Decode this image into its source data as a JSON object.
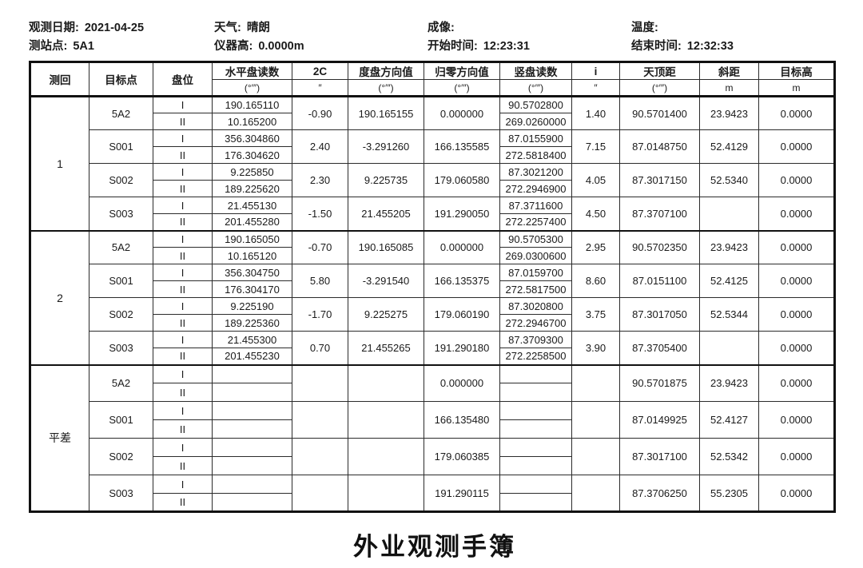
{
  "meta": {
    "cols": [
      {
        "rows": [
          {
            "label": "观测日期:",
            "value": "2021-04-25"
          },
          {
            "label": "测站点:",
            "value": "5A1"
          }
        ]
      },
      {
        "rows": [
          {
            "label": "天气:",
            "value": "晴朗"
          },
          {
            "label": "仪器高:",
            "value": "0.0000m"
          }
        ]
      },
      {
        "rows": [
          {
            "label": "成像:",
            "value": ""
          },
          {
            "label": "开始时间:",
            "value": "12:23:31"
          }
        ]
      },
      {
        "rows": [
          {
            "label": "温度:",
            "value": ""
          },
          {
            "label": "结束时间:",
            "value": "12:32:33"
          }
        ]
      }
    ]
  },
  "table": {
    "columns": [
      {
        "label": "测回",
        "unit": null
      },
      {
        "label": "目标点",
        "unit": null
      },
      {
        "label": "盘位",
        "unit": null
      },
      {
        "label": "水平盘读数",
        "unit": "(°′″)"
      },
      {
        "label": "2C",
        "unit": "″"
      },
      {
        "label": "度盘方向值",
        "unit": "(°′″)"
      },
      {
        "label": "归零方向值",
        "unit": "(°′″)"
      },
      {
        "label": "竖盘读数",
        "unit": "(°′″)"
      },
      {
        "label": "i",
        "unit": "″"
      },
      {
        "label": "天顶距",
        "unit": "(°′″)"
      },
      {
        "label": "斜距",
        "unit": "m"
      },
      {
        "label": "目标高",
        "unit": "m"
      }
    ],
    "sections": [
      {
        "round": "1",
        "targets": [
          {
            "name": "5A2",
            "faces": [
              "I",
              "II"
            ],
            "horizontal": [
              "190.165110",
              "10.165200"
            ],
            "c2": "-0.90",
            "direction": "190.165155",
            "zeroed": "0.000000",
            "vertical": [
              "90.5702800",
              "269.0260000"
            ],
            "i": "1.40",
            "zenith": "90.5701400",
            "slope": "23.9423",
            "target_height": "0.0000"
          },
          {
            "name": "S001",
            "faces": [
              "I",
              "II"
            ],
            "horizontal": [
              "356.304860",
              "176.304620"
            ],
            "c2": "2.40",
            "direction": "-3.291260",
            "zeroed": "166.135585",
            "vertical": [
              "87.0155900",
              "272.5818400"
            ],
            "i": "7.15",
            "zenith": "87.0148750",
            "slope": "52.4129",
            "target_height": "0.0000"
          },
          {
            "name": "S002",
            "faces": [
              "I",
              "II"
            ],
            "horizontal": [
              "9.225850",
              "189.225620"
            ],
            "c2": "2.30",
            "direction": "9.225735",
            "zeroed": "179.060580",
            "vertical": [
              "87.3021200",
              "272.2946900"
            ],
            "i": "4.05",
            "zenith": "87.3017150",
            "slope": "52.5340",
            "target_height": "0.0000"
          },
          {
            "name": "S003",
            "faces": [
              "I",
              "II"
            ],
            "horizontal": [
              "21.455130",
              "201.455280"
            ],
            "c2": "-1.50",
            "direction": "21.455205",
            "zeroed": "191.290050",
            "vertical": [
              "87.3711600",
              "272.2257400"
            ],
            "i": "4.50",
            "zenith": "87.3707100",
            "slope": "",
            "target_height": "0.0000"
          }
        ]
      },
      {
        "round": "2",
        "targets": [
          {
            "name": "5A2",
            "faces": [
              "I",
              "II"
            ],
            "horizontal": [
              "190.165050",
              "10.165120"
            ],
            "c2": "-0.70",
            "direction": "190.165085",
            "zeroed": "0.000000",
            "vertical": [
              "90.5705300",
              "269.0300600"
            ],
            "i": "2.95",
            "zenith": "90.5702350",
            "slope": "23.9423",
            "target_height": "0.0000"
          },
          {
            "name": "S001",
            "faces": [
              "I",
              "II"
            ],
            "horizontal": [
              "356.304750",
              "176.304170"
            ],
            "c2": "5.80",
            "direction": "-3.291540",
            "zeroed": "166.135375",
            "vertical": [
              "87.0159700",
              "272.5817500"
            ],
            "i": "8.60",
            "zenith": "87.0151100",
            "slope": "52.4125",
            "target_height": "0.0000"
          },
          {
            "name": "S002",
            "faces": [
              "I",
              "II"
            ],
            "horizontal": [
              "9.225190",
              "189.225360"
            ],
            "c2": "-1.70",
            "direction": "9.225275",
            "zeroed": "179.060190",
            "vertical": [
              "87.3020800",
              "272.2946700"
            ],
            "i": "3.75",
            "zenith": "87.3017050",
            "slope": "52.5344",
            "target_height": "0.0000"
          },
          {
            "name": "S003",
            "faces": [
              "I",
              "II"
            ],
            "horizontal": [
              "21.455300",
              "201.455230"
            ],
            "c2": "0.70",
            "direction": "21.455265",
            "zeroed": "191.290180",
            "vertical": [
              "87.3709300",
              "272.2258500"
            ],
            "i": "3.90",
            "zenith": "87.3705400",
            "slope": "",
            "target_height": "0.0000"
          }
        ]
      },
      {
        "round": "平差",
        "targets": [
          {
            "name": "5A2",
            "faces": [
              "I",
              "II"
            ],
            "horizontal": [
              "",
              ""
            ],
            "c2": "",
            "direction": "",
            "zeroed": "0.000000",
            "vertical": [
              "",
              ""
            ],
            "i": "",
            "zenith": "90.5701875",
            "slope": "23.9423",
            "target_height": "0.0000"
          },
          {
            "name": "S001",
            "faces": [
              "I",
              "II"
            ],
            "horizontal": [
              "",
              ""
            ],
            "c2": "",
            "direction": "",
            "zeroed": "166.135480",
            "vertical": [
              "",
              ""
            ],
            "i": "",
            "zenith": "87.0149925",
            "slope": "52.4127",
            "target_height": "0.0000"
          },
          {
            "name": "S002",
            "faces": [
              "I",
              "II"
            ],
            "horizontal": [
              "",
              ""
            ],
            "c2": "",
            "direction": "",
            "zeroed": "179.060385",
            "vertical": [
              "",
              ""
            ],
            "i": "",
            "zenith": "87.3017100",
            "slope": "52.5342",
            "target_height": "0.0000"
          },
          {
            "name": "S003",
            "faces": [
              "I",
              "II"
            ],
            "horizontal": [
              "",
              ""
            ],
            "c2": "",
            "direction": "",
            "zeroed": "191.290115",
            "vertical": [
              "",
              ""
            ],
            "i": "",
            "zenith": "87.3706250",
            "slope": "55.2305",
            "target_height": "0.0000"
          }
        ]
      }
    ]
  },
  "caption": "外业观测手簿"
}
